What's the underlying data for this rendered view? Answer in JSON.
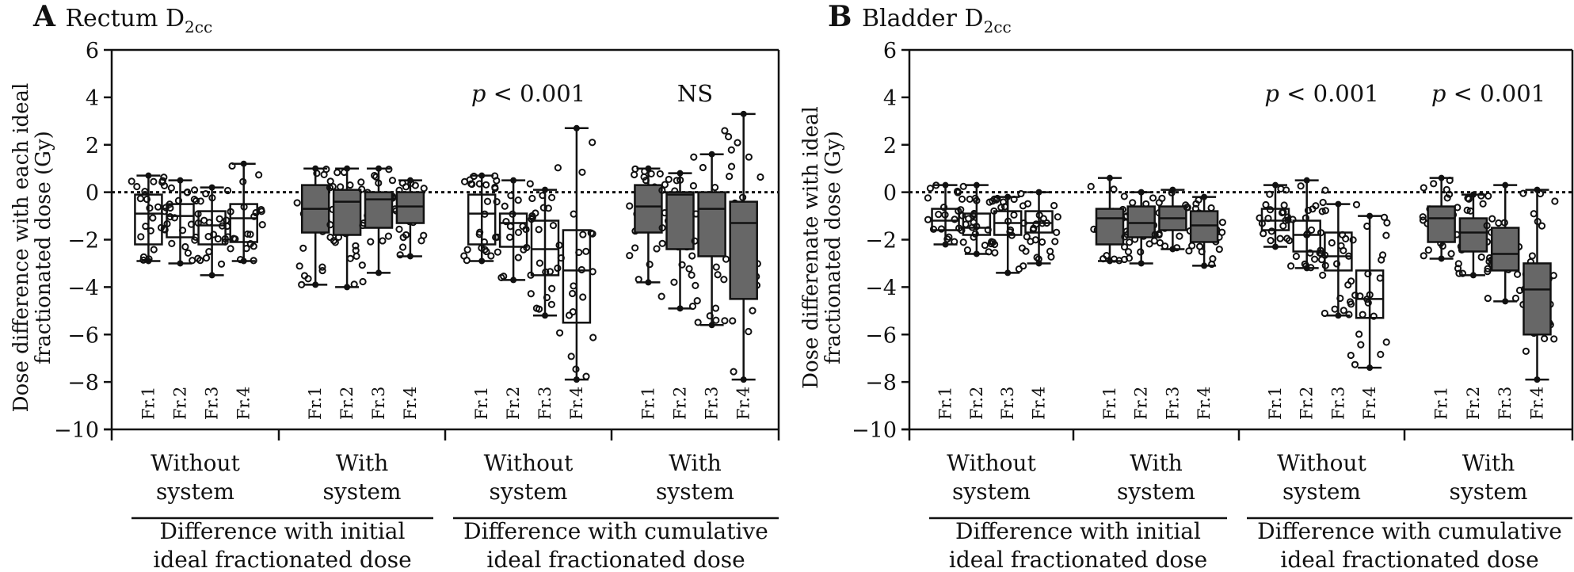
{
  "chart_data": [
    {
      "type": "box",
      "panel_letter": "A",
      "title": "Rectum D",
      "title_sub": "2cc",
      "ylabel_lines": [
        "Dose difference with each ideal",
        "fractionated dose (Gy)"
      ],
      "ylim": [
        -10,
        6
      ],
      "yticks": [
        6,
        4,
        2,
        0,
        -2,
        -4,
        -6,
        -8,
        -10
      ],
      "reference_line": 0,
      "groups": [
        {
          "label_lines": [
            "Without",
            "system"
          ],
          "filled": false,
          "section": 0
        },
        {
          "label_lines": [
            "With",
            "system"
          ],
          "filled": true,
          "section": 0
        },
        {
          "label_lines": [
            "Without",
            "system"
          ],
          "filled": false,
          "section": 1
        },
        {
          "label_lines": [
            "With",
            "system"
          ],
          "filled": true,
          "section": 1
        }
      ],
      "sections": [
        {
          "label_lines": [
            "Difference with initial",
            "ideal fractionated dose"
          ],
          "annotation": ""
        },
        {
          "label_lines": [
            "Difference with cumulative",
            "ideal fractionated dose"
          ],
          "annotation": ""
        }
      ],
      "annotations": [
        "",
        "",
        "p < 0.001",
        "NS"
      ],
      "categories": [
        "Fr.1",
        "Fr.2",
        "Fr.3",
        "Fr.4"
      ],
      "boxes": [
        [
          {
            "min": -2.9,
            "q1": -2.2,
            "median": -0.9,
            "q3": -0.1,
            "max": 0.7
          },
          {
            "min": -3.0,
            "q1": -1.9,
            "median": -1.0,
            "q3": -0.5,
            "max": 0.5
          },
          {
            "min": -3.5,
            "q1": -2.2,
            "median": -1.4,
            "q3": -0.8,
            "max": 0.2
          },
          {
            "min": -2.9,
            "q1": -2.1,
            "median": -1.1,
            "q3": -0.5,
            "max": 1.2
          }
        ],
        [
          {
            "min": -3.9,
            "q1": -1.7,
            "median": -0.7,
            "q3": 0.3,
            "max": 1.0
          },
          {
            "min": -4.0,
            "q1": -1.8,
            "median": -0.4,
            "q3": 0.1,
            "max": 1.0
          },
          {
            "min": -3.4,
            "q1": -1.5,
            "median": -0.3,
            "q3": 0.0,
            "max": 1.0
          },
          {
            "min": -2.7,
            "q1": -1.3,
            "median": -0.6,
            "q3": 0.0,
            "max": 0.5
          }
        ],
        [
          {
            "min": -2.9,
            "q1": -2.2,
            "median": -0.9,
            "q3": -0.1,
            "max": 0.7
          },
          {
            "min": -3.7,
            "q1": -2.3,
            "median": -1.3,
            "q3": -0.9,
            "max": 0.5
          },
          {
            "min": -5.2,
            "q1": -3.5,
            "median": -2.4,
            "q3": -1.2,
            "max": 0.1
          },
          {
            "min": -7.9,
            "q1": -5.5,
            "median": -3.3,
            "q3": -1.6,
            "max": 2.7
          }
        ],
        [
          {
            "min": -3.8,
            "q1": -1.7,
            "median": -0.6,
            "q3": 0.3,
            "max": 1.0
          },
          {
            "min": -4.9,
            "q1": -2.4,
            "median": -0.1,
            "q3": 0.0,
            "max": 0.8
          },
          {
            "min": -5.6,
            "q1": -2.7,
            "median": -0.7,
            "q3": -0.0,
            "max": 1.6
          },
          {
            "min": -7.9,
            "q1": -4.5,
            "median": -1.3,
            "q3": -0.4,
            "max": 3.3
          }
        ]
      ]
    },
    {
      "type": "box",
      "panel_letter": "B",
      "title": "Bladder D",
      "title_sub": "2cc",
      "ylabel_lines": [
        "Dose differenate with ideal",
        "fractionated dose (Gy)"
      ],
      "ylim": [
        -10,
        6
      ],
      "yticks": [
        6,
        4,
        2,
        0,
        -2,
        -4,
        -6,
        -8,
        -10
      ],
      "reference_line": 0,
      "groups": [
        {
          "label_lines": [
            "Without",
            "system"
          ],
          "filled": false,
          "section": 0
        },
        {
          "label_lines": [
            "With",
            "system"
          ],
          "filled": true,
          "section": 0
        },
        {
          "label_lines": [
            "Without",
            "system"
          ],
          "filled": false,
          "section": 1
        },
        {
          "label_lines": [
            "With",
            "system"
          ],
          "filled": true,
          "section": 1
        }
      ],
      "sections": [
        {
          "label_lines": [
            "Difference with initial",
            "ideal fractionated dose"
          ],
          "annotation": ""
        },
        {
          "label_lines": [
            "Difference with cumulative",
            "ideal fractionated dose"
          ],
          "annotation": ""
        }
      ],
      "annotations": [
        "",
        "",
        "p < 0.001",
        "p < 0.001"
      ],
      "categories": [
        "Fr.1",
        "Fr.2",
        "Fr.3",
        "Fr.4"
      ],
      "boxes": [
        [
          {
            "min": -2.2,
            "q1": -1.6,
            "median": -1.2,
            "q3": -0.7,
            "max": 0.3
          },
          {
            "min": -2.6,
            "q1": -1.8,
            "median": -1.5,
            "q3": -0.9,
            "max": 0.3
          },
          {
            "min": -3.4,
            "q1": -1.8,
            "median": -1.3,
            "q3": -0.8,
            "max": -0.2
          },
          {
            "min": -3.0,
            "q1": -1.7,
            "median": -1.3,
            "q3": -0.8,
            "max": -0.0
          }
        ],
        [
          {
            "min": -2.9,
            "q1": -2.2,
            "median": -1.1,
            "q3": -0.7,
            "max": 0.6
          },
          {
            "min": -3.0,
            "q1": -1.9,
            "median": -1.3,
            "q3": -0.6,
            "max": 0.0
          },
          {
            "min": -2.4,
            "q1": -1.6,
            "median": -1.1,
            "q3": -0.6,
            "max": 0.1
          },
          {
            "min": -3.1,
            "q1": -2.1,
            "median": -1.4,
            "q3": -0.8,
            "max": -0.2
          }
        ],
        [
          {
            "min": -2.3,
            "q1": -1.6,
            "median": -1.2,
            "q3": -0.7,
            "max": 0.3
          },
          {
            "min": -3.2,
            "q1": -2.5,
            "median": -1.8,
            "q3": -1.2,
            "max": 0.5
          },
          {
            "min": -5.2,
            "q1": -3.3,
            "median": -2.7,
            "q3": -1.7,
            "max": -0.5
          },
          {
            "min": -7.4,
            "q1": -5.3,
            "median": -4.5,
            "q3": -3.3,
            "max": -1.0
          }
        ],
        [
          {
            "min": -2.8,
            "q1": -2.1,
            "median": -1.1,
            "q3": -0.6,
            "max": 0.6
          },
          {
            "min": -3.5,
            "q1": -2.5,
            "median": -1.7,
            "q3": -1.1,
            "max": -0.1
          },
          {
            "min": -4.6,
            "q1": -3.3,
            "median": -2.6,
            "q3": -1.5,
            "max": 0.3
          },
          {
            "min": -7.9,
            "q1": -6.0,
            "median": -4.1,
            "q3": -3.0,
            "max": 0.1
          }
        ]
      ]
    }
  ],
  "colors": {
    "box_fill_filled": "#676767",
    "box_fill_open": "#ffffff",
    "stroke": "#111111"
  }
}
